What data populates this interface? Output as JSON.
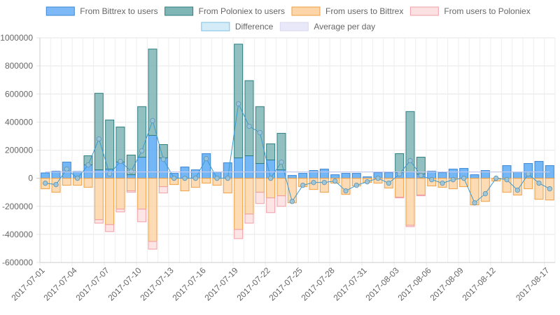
{
  "chart_data": {
    "type": "bar",
    "title": "",
    "xlabel": "",
    "ylabel": "",
    "ylim": [
      -600000,
      1000000
    ],
    "y_ticks": [
      1000000,
      800000,
      600000,
      400000,
      200000,
      0,
      -200000,
      -400000,
      -600000
    ],
    "x_tick_labels": [
      "2017-07-01",
      "2017-07-04",
      "2017-07-07",
      "2017-07-10",
      "2017-07-13",
      "2017-07-16",
      "2017-07-19",
      "2017-07-22",
      "2017-07-25",
      "2017-07-28",
      "2017-07-31",
      "2017-08-03",
      "2017-08-06",
      "2017-08-09",
      "2017-08-12",
      "2017-08-17"
    ],
    "x_tick_indices": [
      0,
      3,
      6,
      9,
      12,
      15,
      18,
      21,
      24,
      27,
      30,
      33,
      36,
      39,
      42,
      47
    ],
    "categories": [
      "2017-07-01",
      "2017-07-02",
      "2017-07-03",
      "2017-07-04",
      "2017-07-05",
      "2017-07-06",
      "2017-07-07",
      "2017-07-08",
      "2017-07-09",
      "2017-07-10",
      "2017-07-11",
      "2017-07-12",
      "2017-07-13",
      "2017-07-14",
      "2017-07-15",
      "2017-07-16",
      "2017-07-17",
      "2017-07-18",
      "2017-07-19",
      "2017-07-20",
      "2017-07-21",
      "2017-07-22",
      "2017-07-23",
      "2017-07-24",
      "2017-07-25",
      "2017-07-26",
      "2017-07-27",
      "2017-07-28",
      "2017-07-29",
      "2017-07-30",
      "2017-07-31",
      "2017-08-01",
      "2017-08-02",
      "2017-08-03",
      "2017-08-04",
      "2017-08-05",
      "2017-08-06",
      "2017-08-07",
      "2017-08-08",
      "2017-08-09",
      "2017-08-10",
      "2017-08-11",
      "2017-08-12",
      "2017-08-13",
      "2017-08-14",
      "2017-08-15",
      "2017-08-16",
      "2017-08-17"
    ],
    "grid": true,
    "legend_position": "top",
    "series": [
      {
        "name": "From Bittrex to users",
        "kind": "bar",
        "stack": "positive",
        "color": "#5aaaf5",
        "border": "#3d86d4",
        "values": [
          38000,
          50000,
          115000,
          48000,
          95000,
          60000,
          65000,
          115000,
          25000,
          150000,
          305000,
          145000,
          35000,
          80000,
          60000,
          175000,
          45000,
          110000,
          145000,
          160000,
          105000,
          130000,
          60000,
          20000,
          35000,
          55000,
          65000,
          25000,
          35000,
          35000,
          10000,
          40000,
          40000,
          40000,
          45000,
          30000,
          50000,
          40000,
          65000,
          70000,
          25000,
          55000,
          0,
          90000,
          45000,
          105000,
          120000,
          90000
        ]
      },
      {
        "name": "From Poloniex to users",
        "kind": "bar",
        "stack": "positive",
        "color": "#7fb5b5",
        "border": "#2e7f7f",
        "values": [
          0,
          0,
          0,
          0,
          65000,
          545000,
          350000,
          250000,
          140000,
          360000,
          615000,
          95000,
          0,
          0,
          0,
          0,
          0,
          0,
          810000,
          535000,
          405000,
          115000,
          260000,
          0,
          0,
          0,
          0,
          0,
          0,
          0,
          0,
          0,
          0,
          135000,
          430000,
          120000,
          0,
          0,
          0,
          0,
          0,
          0,
          0,
          0,
          0,
          0,
          0,
          0
        ]
      },
      {
        "name": "From users to Bittrex",
        "kind": "bar",
        "stack": "negative",
        "color": "#fdd5a8",
        "border": "#f0a040",
        "values": [
          -75000,
          -100000,
          -50000,
          -50000,
          -65000,
          -295000,
          -330000,
          -220000,
          -90000,
          -220000,
          -450000,
          -60000,
          -45000,
          -90000,
          -65000,
          -35000,
          -50000,
          -105000,
          -365000,
          -255000,
          -100000,
          -140000,
          -125000,
          -175000,
          -60000,
          -80000,
          -100000,
          -35000,
          -115000,
          -55000,
          -30000,
          -35000,
          -70000,
          -135000,
          -335000,
          -120000,
          -55000,
          -65000,
          -75000,
          -60000,
          -190000,
          -165000,
          -20000,
          -100000,
          -120000,
          -75000,
          -150000,
          -155000
        ]
      },
      {
        "name": "From users to Poloniex",
        "kind": "bar",
        "stack": "negative",
        "color": "#fde0e2",
        "border": "#f0a0a8",
        "values": [
          0,
          0,
          0,
          0,
          0,
          -25000,
          -50000,
          -20000,
          -10000,
          -90000,
          -55000,
          -45000,
          0,
          0,
          0,
          0,
          0,
          0,
          -65000,
          -65000,
          -80000,
          -105000,
          -75000,
          0,
          0,
          0,
          0,
          0,
          0,
          0,
          0,
          0,
          0,
          -5000,
          -10000,
          -5000,
          0,
          0,
          0,
          0,
          0,
          0,
          0,
          0,
          0,
          0,
          0,
          0
        ]
      },
      {
        "name": "Difference",
        "kind": "line",
        "color": "#3a9ad0",
        "values": [
          -35000,
          -45000,
          65000,
          0,
          95000,
          280000,
          30000,
          120000,
          50000,
          195000,
          410000,
          135000,
          0,
          0,
          0,
          140000,
          0,
          0,
          530000,
          370000,
          325000,
          0,
          115000,
          -165000,
          -50000,
          -30000,
          -30000,
          -20000,
          -90000,
          -50000,
          -25000,
          0,
          -35000,
          30000,
          125000,
          20000,
          -10000,
          -35000,
          -10000,
          0,
          -175000,
          -110000,
          0,
          -10000,
          -85000,
          30000,
          -35000,
          -75000
        ]
      },
      {
        "name": "Average per day",
        "kind": "line",
        "color": "#c8c8ec",
        "values": [
          45000,
          45000,
          45000,
          45000,
          45000,
          45000,
          45000,
          45000,
          45000,
          45000,
          45000,
          45000,
          45000,
          45000,
          45000,
          45000,
          45000,
          45000,
          45000,
          45000,
          45000,
          45000,
          45000,
          45000,
          45000,
          45000,
          45000,
          45000,
          45000,
          45000,
          45000,
          45000,
          45000,
          45000,
          45000,
          45000,
          45000,
          45000,
          45000,
          45000,
          45000,
          45000,
          45000,
          45000,
          45000,
          45000,
          45000,
          45000
        ]
      }
    ]
  },
  "legend": {
    "items": [
      {
        "label": "From Bittrex to users",
        "fill": "#7db9f7",
        "stroke": "#3d86d4"
      },
      {
        "label": "From Poloniex to users",
        "fill": "#7fb5b5",
        "stroke": "#2e7f7f"
      },
      {
        "label": "From users to Bittrex",
        "fill": "#fdd5a8",
        "stroke": "#f0a040"
      },
      {
        "label": "From users to Poloniex",
        "fill": "#fde0e2",
        "stroke": "#f0a0a8"
      },
      {
        "label": "Difference",
        "fill": "#d4ebf8",
        "stroke": "#7cc0e6"
      },
      {
        "label": "Average per day",
        "fill": "#e8e8f8",
        "stroke": "#d8d8f0"
      }
    ]
  }
}
